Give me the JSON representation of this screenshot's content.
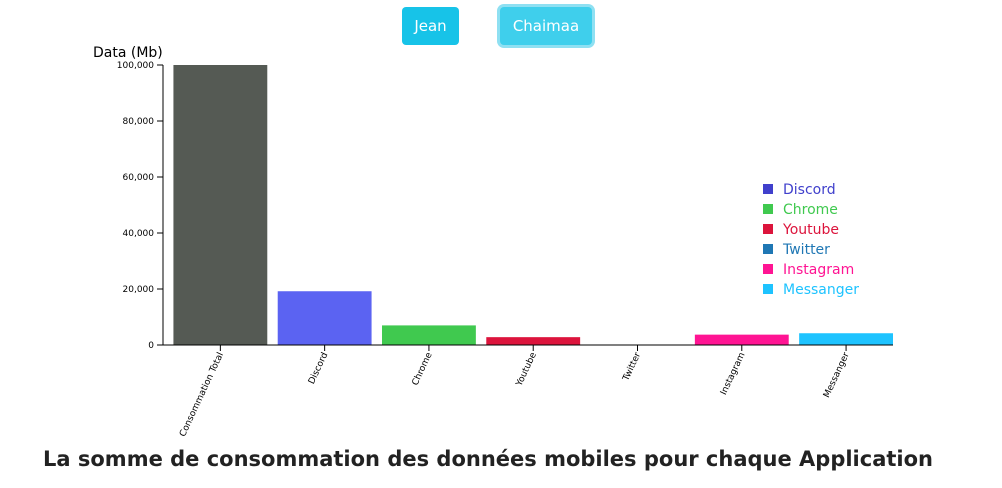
{
  "buttons": {
    "jean": "Jean",
    "chaimaa": "Chaimaa"
  },
  "chart_data": {
    "type": "bar",
    "title": "La somme de consommation des données mobiles pour chaque Application",
    "ylabel": "Data (Mb)",
    "xlabel": "",
    "ylim": [
      0,
      100000
    ],
    "yticks": [
      0,
      20000,
      40000,
      60000,
      80000,
      100000
    ],
    "categories": [
      "Consommation Total",
      "Discord",
      "Chrome",
      "Youtube",
      "Twitter",
      "Instagram",
      "Messanger"
    ],
    "values": [
      100000,
      19200,
      7000,
      2800,
      0,
      3700,
      4200
    ],
    "colors": [
      "#555a54",
      "#5b63f2",
      "#40c94f",
      "#dc143c",
      "#1f77b4",
      "#ff1493",
      "#1ec3ff"
    ],
    "legend": {
      "position": "right",
      "items": [
        {
          "label": "Discord",
          "color": "#4040cc"
        },
        {
          "label": "Chrome",
          "color": "#40c94f"
        },
        {
          "label": "Youtube",
          "color": "#dc143c"
        },
        {
          "label": "Twitter",
          "color": "#1f77b4"
        },
        {
          "label": "Instagram",
          "color": "#ff1493"
        },
        {
          "label": "Messanger",
          "color": "#1ec3ff"
        }
      ]
    },
    "grid": false
  }
}
